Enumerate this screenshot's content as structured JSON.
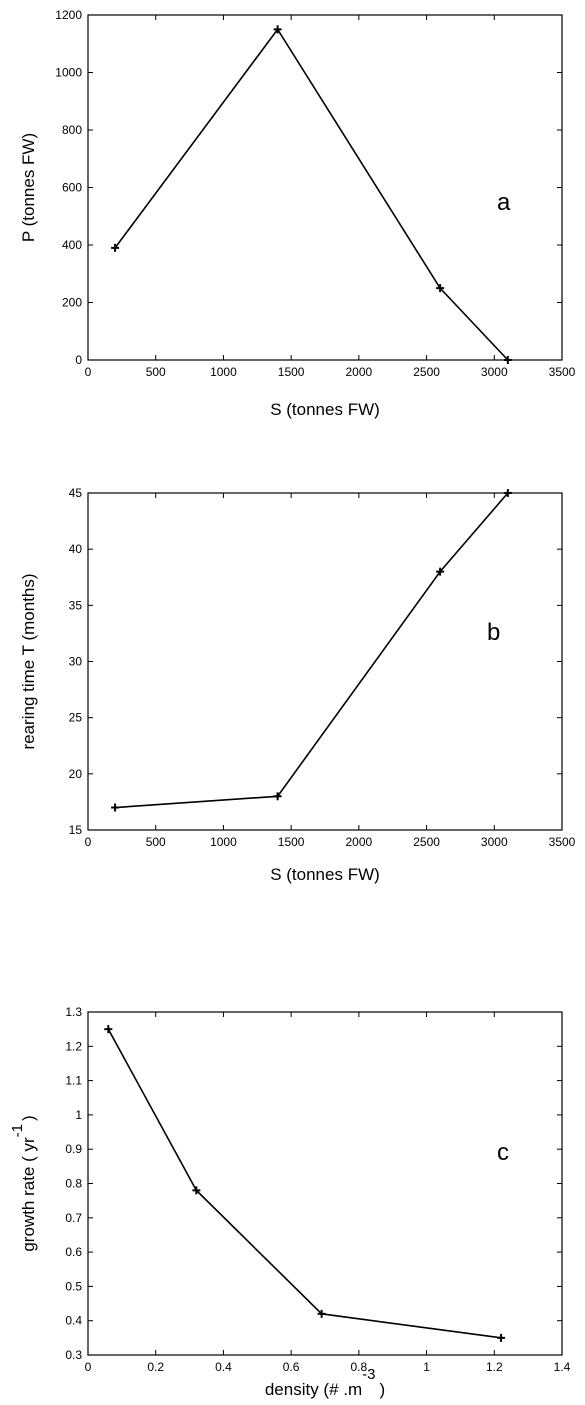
{
  "chart_data": [
    {
      "type": "line",
      "panel_label": "a",
      "xlabel": "S (tonnes FW)",
      "ylabel": "P (tonnes FW)",
      "xlim": [
        0,
        3500
      ],
      "ylim": [
        0,
        1200
      ],
      "xticks": [
        0,
        500,
        1000,
        1500,
        2000,
        2500,
        3000,
        3500
      ],
      "yticks": [
        0,
        200,
        400,
        600,
        800,
        1000,
        1200
      ],
      "x": [
        200,
        1400,
        2600,
        3100
      ],
      "y": [
        390,
        1150,
        250,
        0
      ],
      "marker": "+",
      "grid": false
    },
    {
      "type": "line",
      "panel_label": "b",
      "xlabel": "S (tonnes FW)",
      "ylabel": "rearing time T (months)",
      "xlim": [
        0,
        3500
      ],
      "ylim": [
        15,
        45
      ],
      "xticks": [
        0,
        500,
        1000,
        1500,
        2000,
        2500,
        3000,
        3500
      ],
      "yticks": [
        15,
        20,
        25,
        30,
        35,
        40,
        45
      ],
      "x": [
        200,
        1400,
        2600,
        3100
      ],
      "y": [
        17,
        18,
        38,
        45
      ],
      "marker": "+",
      "grid": false
    },
    {
      "type": "line",
      "panel_label": "c",
      "xlabel": "density (# .m",
      "xlabel_superscript": "-3",
      "xlabel_close": ")",
      "ylabel": "growth rate ( yr",
      "ylabel_superscript": "-1",
      "ylabel_close": ")",
      "xlim": [
        0,
        1.4
      ],
      "ylim": [
        0.3,
        1.3
      ],
      "xticks": [
        0,
        0.2,
        0.4,
        0.6,
        0.8,
        1,
        1.2,
        1.4
      ],
      "yticks": [
        0.3,
        0.4,
        0.5,
        0.6,
        0.7,
        0.8,
        0.9,
        1,
        1.1,
        1.2,
        1.3
      ],
      "x": [
        0.06,
        0.32,
        0.69,
        1.22
      ],
      "y": [
        1.25,
        0.78,
        0.42,
        0.35
      ],
      "marker": "+",
      "grid": false
    }
  ]
}
